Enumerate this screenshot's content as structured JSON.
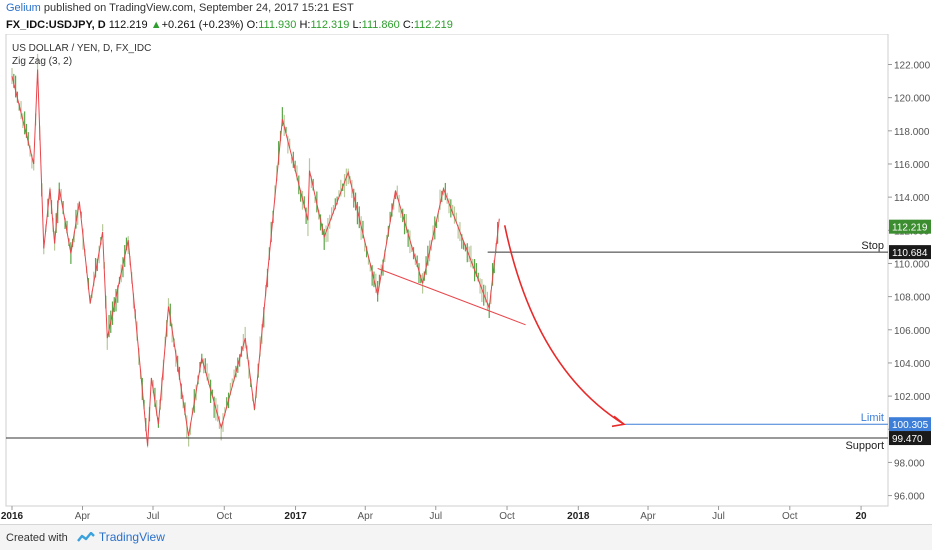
{
  "header": {
    "author": "Gelium",
    "published": "published on TradingView.com, September 24, 2017 15:21 EST"
  },
  "ohlc": {
    "symbol": "FX_IDC:USDJPY, D",
    "last": "112.219",
    "change_arrow": "▲",
    "change": "+0.261 (+0.23%)",
    "o_label": "O:",
    "o_value": "111.930",
    "h_label": "H:",
    "h_value": "112.319",
    "l_label": "L:",
    "l_value": "111.860",
    "c_label": "C:",
    "c_value": "112.219"
  },
  "chart_data": {
    "type": "line",
    "title": "US DOLLAR / YEN, D, FX_IDC",
    "indicator": "Zig Zag (3, 2)",
    "y_ticks": [
      "122.000",
      "120.000",
      "118.000",
      "116.000",
      "114.000",
      "112.000",
      "110.000",
      "108.000",
      "106.000",
      "104.000",
      "102.000",
      "100.000",
      "98.000",
      "96.000"
    ],
    "x_ticks": [
      "2016",
      "Apr",
      "Jul",
      "Oct",
      "2017",
      "Apr",
      "Jul",
      "Oct",
      "2018",
      "Apr",
      "Jul",
      "Oct",
      "20"
    ],
    "ylim": [
      95.5,
      123.5
    ],
    "series": [
      {
        "points": [
          [
            "2016-01-01",
            121.3
          ],
          [
            "2016-01-29",
            116.0
          ],
          [
            "2016-02-03",
            121.7
          ],
          [
            "2016-02-11",
            110.9
          ],
          [
            "2016-02-19",
            114.5
          ],
          [
            "2016-02-25",
            111.2
          ],
          [
            "2016-03-02",
            114.5
          ],
          [
            "2016-03-17",
            110.6
          ],
          [
            "2016-03-28",
            113.7
          ],
          [
            "2016-04-11",
            107.6
          ],
          [
            "2016-04-27",
            111.9
          ],
          [
            "2016-05-03",
            105.5
          ],
          [
            "2016-05-30",
            111.4
          ],
          [
            "2016-06-24",
            99.0
          ],
          [
            "2016-06-29",
            103.1
          ],
          [
            "2016-07-08",
            100.3
          ],
          [
            "2016-07-21",
            107.4
          ],
          [
            "2016-08-16",
            99.6
          ],
          [
            "2016-09-02",
            104.3
          ],
          [
            "2016-09-27",
            100.1
          ],
          [
            "2016-10-28",
            105.5
          ],
          [
            "2016-11-09",
            101.2
          ],
          [
            "2016-12-15",
            118.7
          ],
          [
            "2017-01-17",
            112.6
          ],
          [
            "2017-01-19",
            115.6
          ],
          [
            "2017-02-07",
            111.6
          ],
          [
            "2017-03-10",
            115.5
          ],
          [
            "2017-04-17",
            108.1
          ],
          [
            "2017-05-10",
            114.4
          ],
          [
            "2017-06-14",
            108.8
          ],
          [
            "2017-07-11",
            114.5
          ],
          [
            "2017-09-08",
            107.3
          ],
          [
            "2017-09-21",
            112.7
          ]
        ]
      }
    ],
    "trendline": {
      "from": [
        "2017-04-17",
        109.7
      ],
      "to": [
        "2017-10-25",
        106.3
      ]
    },
    "projection": {
      "from": [
        "2017-09-28",
        112.3
      ],
      "to": [
        "2018-03-01",
        100.3
      ]
    },
    "levels": [
      {
        "label": "Stop",
        "value": 110.684,
        "value_text": "110.684",
        "color": "#333333"
      },
      {
        "label": "Limit",
        "value": 100.305,
        "value_text": "100.305",
        "color": "#3d7fd8"
      },
      {
        "label": "Support",
        "value": 99.47,
        "value_text": "99.470",
        "color": "#333333"
      }
    ],
    "last_price": {
      "value": 112.219,
      "value_text": "112.219",
      "color": "#3c8d2f"
    },
    "colors": {
      "candle_up": "#5aa548",
      "candle_down": "#b7c89a",
      "zigzag": "#e8464b",
      "projection": "#e82a2a"
    }
  },
  "footer": {
    "created_with": "Created with",
    "brand": "TradingView"
  }
}
